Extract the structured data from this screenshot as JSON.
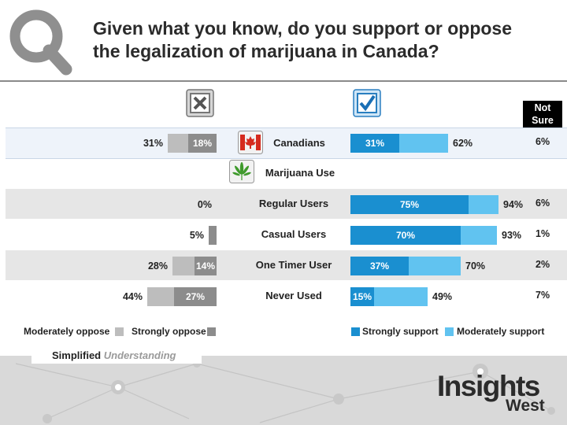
{
  "title": "Given what you know, do you support or oppose\nthe legalization of marijuana in Canada?",
  "not_sure_header": "Not\nSure",
  "colors": {
    "strongly_support": "#1a8fd0",
    "moderately_support": "#61c3f0",
    "moderately_oppose": "#bdbdbd",
    "strongly_oppose": "#8c8c8c",
    "row_highlight": "#eef3fa",
    "row_gray": "#e6e6e6"
  },
  "chart_data": {
    "type": "bar",
    "orientation": "horizontal-diverging",
    "categories": [
      "Canadians",
      "Regular Users",
      "Casual Users",
      "One Timer User",
      "Never Used"
    ],
    "section_label": "Marijuana Use",
    "series": [
      {
        "name": "Strongly support",
        "values": [
          31,
          75,
          70,
          37,
          15
        ]
      },
      {
        "name": "Moderately support",
        "values": [
          31,
          19,
          23,
          33,
          34
        ]
      },
      {
        "name": "Strongly oppose",
        "values": [
          18,
          0,
          5,
          14,
          27
        ]
      },
      {
        "name": "Moderately oppose",
        "values": [
          13,
          0,
          0,
          14,
          17
        ]
      }
    ],
    "support_total": [
      "62%",
      "94%",
      "93%",
      "70%",
      "49%"
    ],
    "oppose_total": [
      "31%",
      "0%",
      "5%",
      "28%",
      "44%"
    ],
    "strongly_support_labels": [
      "31%",
      "75%",
      "70%",
      "37%",
      "15%"
    ],
    "strongly_oppose_labels": [
      "18%",
      "",
      "",
      "14%",
      "27%"
    ],
    "not_sure": [
      "6%",
      "6%",
      "1%",
      "2%",
      "7%"
    ]
  },
  "legend": {
    "moderately_oppose": "Moderately oppose",
    "strongly_oppose": "Strongly oppose",
    "strongly_support": "Strongly support",
    "moderately_support": "Moderately support"
  },
  "footer": {
    "simplified": "Simplified",
    "understanding": "Understanding",
    "brand_top": "Insights",
    "brand_bottom": "West"
  },
  "icons": {
    "logo": "magnifier-logo-icon",
    "oppose": "x-box-icon",
    "support": "check-box-icon",
    "canada": "maple-leaf-flag-icon",
    "marijuana": "cannabis-leaf-icon"
  }
}
